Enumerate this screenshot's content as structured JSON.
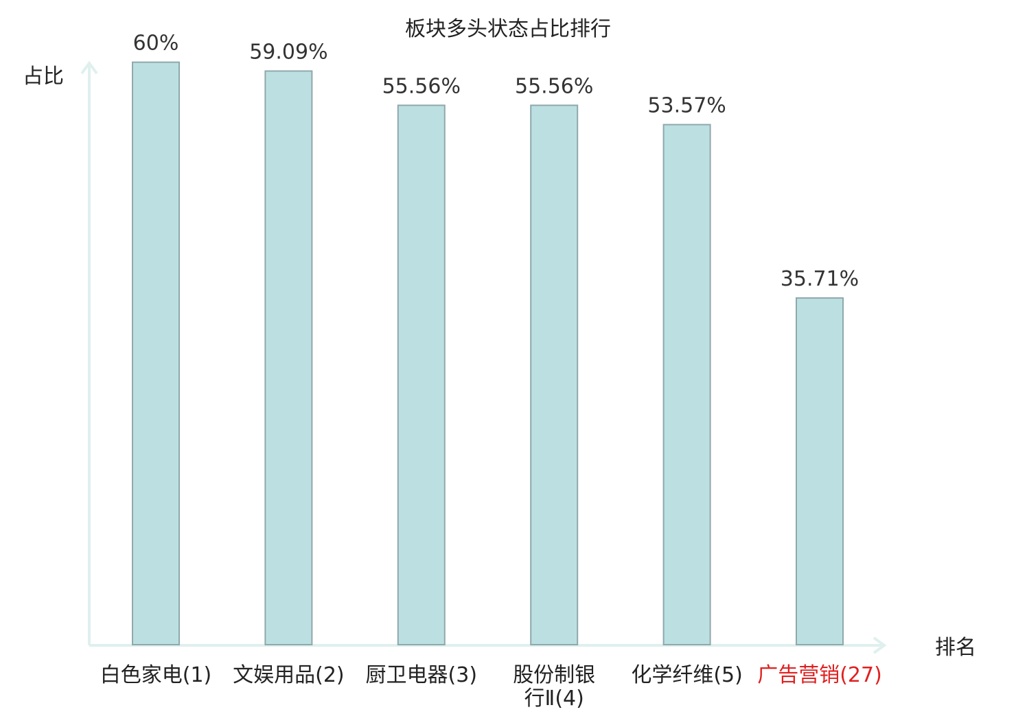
{
  "chart_data": {
    "type": "bar",
    "title": "板块多头状态占比排行",
    "ylabel": "占比",
    "xlabel": "排名",
    "ylim": [
      0,
      60
    ],
    "grid": false,
    "legend": "none",
    "categories": [
      {
        "name": "白色家电",
        "rank": "(1)",
        "highlight": false
      },
      {
        "name": "文娱用品",
        "rank": "(2)",
        "highlight": false
      },
      {
        "name": "厨卫电器",
        "rank": "(3)",
        "highlight": false
      },
      {
        "name": "股份制银行Ⅱ",
        "rank": "(4)",
        "highlight": false
      },
      {
        "name": "化学纤维",
        "rank": "(5)",
        "highlight": false
      },
      {
        "name": "广告营销",
        "rank": "(27)",
        "highlight": true
      }
    ],
    "values": [
      60,
      59.09,
      55.56,
      55.56,
      53.57,
      35.71
    ],
    "value_labels": [
      "60%",
      "59.09%",
      "55.56%",
      "55.56%",
      "53.57%",
      "35.71%"
    ],
    "colors": {
      "bar_fill": "#bce0e2",
      "bar_stroke": "#8fa8ab",
      "axis": "#dff0ee",
      "highlight_text": "#e02020",
      "text": "#222222"
    }
  }
}
